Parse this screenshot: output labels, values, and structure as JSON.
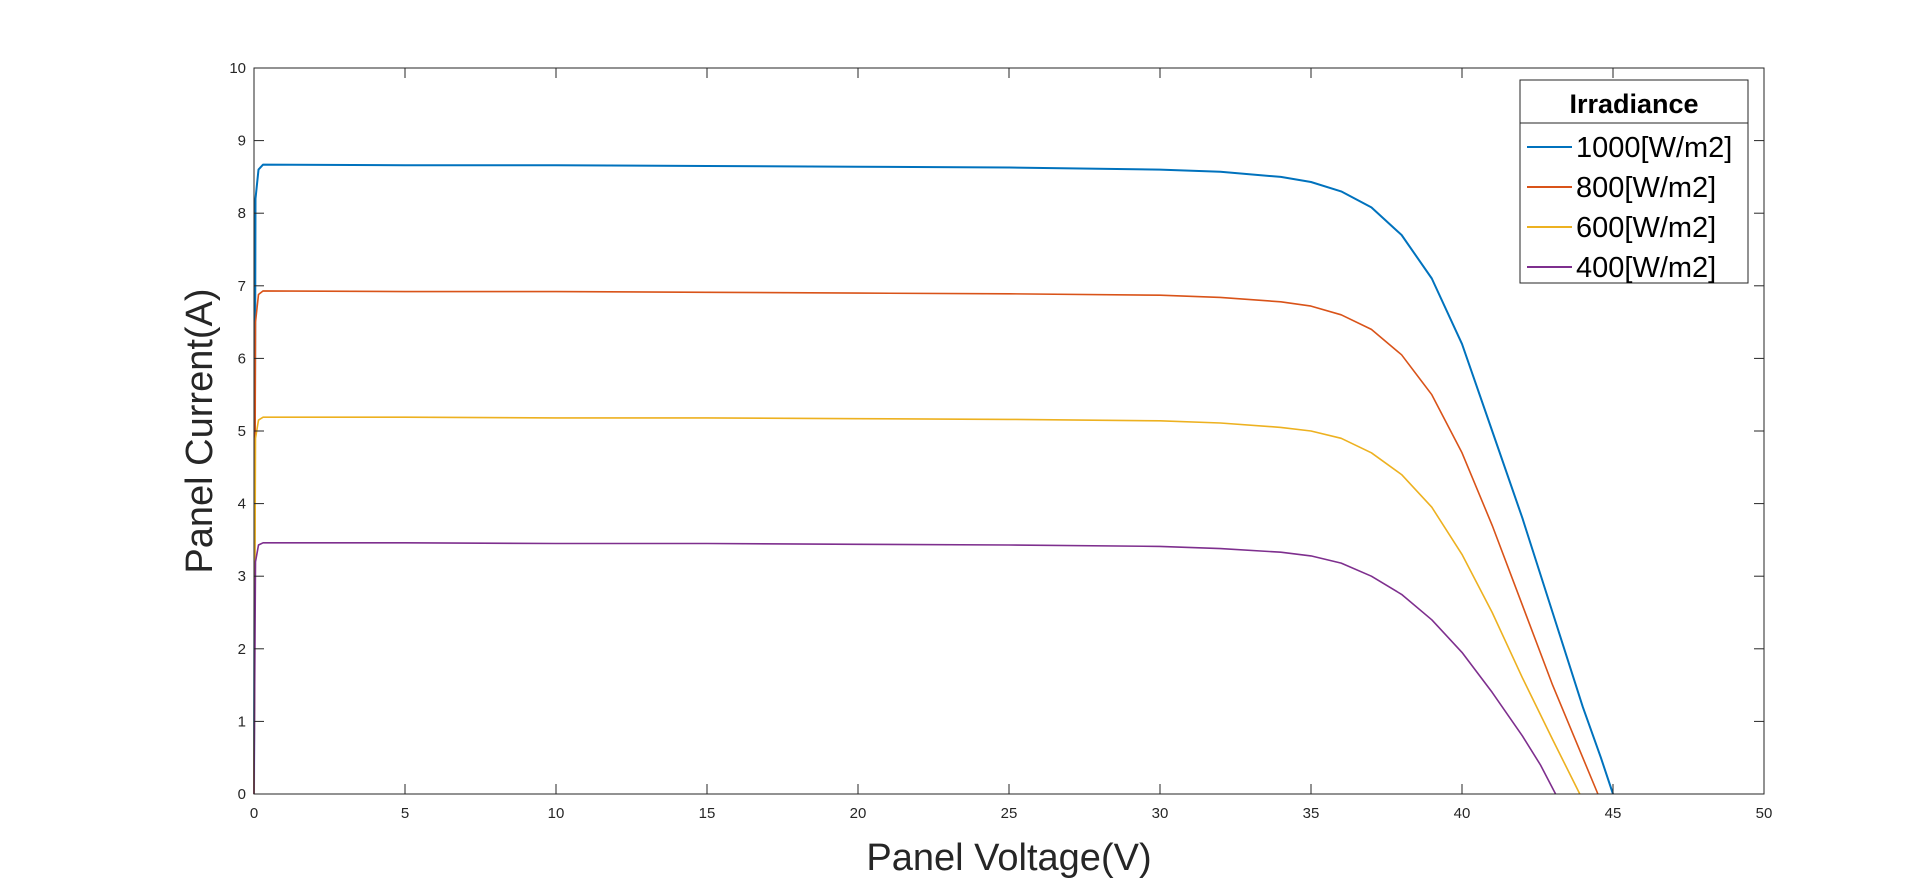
{
  "chart_data": {
    "type": "line",
    "xlabel": "Panel Voltage(V)",
    "ylabel": "Panel Current(A)",
    "xlim": [
      0,
      50
    ],
    "ylim": [
      0,
      10
    ],
    "xticks": [
      0,
      5,
      10,
      15,
      20,
      25,
      30,
      35,
      40,
      45,
      50
    ],
    "yticks": [
      0,
      1,
      2,
      3,
      4,
      5,
      6,
      7,
      8,
      9,
      10
    ],
    "grid": false,
    "legend": {
      "title": "Irradiance",
      "position": "top-right"
    },
    "series": [
      {
        "name": "1000[W/m2]",
        "color": "#0072BD",
        "isc": 8.67,
        "voc": 45.0,
        "points": [
          [
            0,
            0
          ],
          [
            0.05,
            8.2
          ],
          [
            0.15,
            8.6
          ],
          [
            0.3,
            8.67
          ],
          [
            5,
            8.66
          ],
          [
            10,
            8.66
          ],
          [
            15,
            8.65
          ],
          [
            20,
            8.64
          ],
          [
            25,
            8.63
          ],
          [
            30,
            8.6
          ],
          [
            32,
            8.57
          ],
          [
            34,
            8.5
          ],
          [
            35,
            8.43
          ],
          [
            36,
            8.3
          ],
          [
            37,
            8.08
          ],
          [
            38,
            7.7
          ],
          [
            39,
            7.1
          ],
          [
            40,
            6.2
          ],
          [
            41,
            5.0
          ],
          [
            42,
            3.8
          ],
          [
            43,
            2.5
          ],
          [
            44,
            1.2
          ],
          [
            44.6,
            0.5
          ],
          [
            45,
            0
          ]
        ]
      },
      {
        "name": "800[W/m2]",
        "color": "#D95319",
        "isc": 6.93,
        "voc": 44.5,
        "points": [
          [
            0,
            0
          ],
          [
            0.05,
            6.5
          ],
          [
            0.15,
            6.88
          ],
          [
            0.3,
            6.93
          ],
          [
            5,
            6.92
          ],
          [
            10,
            6.92
          ],
          [
            15,
            6.91
          ],
          [
            20,
            6.9
          ],
          [
            25,
            6.89
          ],
          [
            30,
            6.87
          ],
          [
            32,
            6.84
          ],
          [
            34,
            6.78
          ],
          [
            35,
            6.72
          ],
          [
            36,
            6.6
          ],
          [
            37,
            6.4
          ],
          [
            38,
            6.05
          ],
          [
            39,
            5.5
          ],
          [
            40,
            4.7
          ],
          [
            41,
            3.7
          ],
          [
            42,
            2.6
          ],
          [
            43,
            1.5
          ],
          [
            44,
            0.5
          ],
          [
            44.5,
            0
          ]
        ]
      },
      {
        "name": "600[W/m2]",
        "color": "#EDB120",
        "isc": 5.19,
        "voc": 43.9,
        "points": [
          [
            0,
            0
          ],
          [
            0.05,
            4.9
          ],
          [
            0.15,
            5.15
          ],
          [
            0.3,
            5.19
          ],
          [
            5,
            5.19
          ],
          [
            10,
            5.18
          ],
          [
            15,
            5.18
          ],
          [
            20,
            5.17
          ],
          [
            25,
            5.16
          ],
          [
            30,
            5.14
          ],
          [
            32,
            5.11
          ],
          [
            34,
            5.05
          ],
          [
            35,
            5.0
          ],
          [
            36,
            4.9
          ],
          [
            37,
            4.7
          ],
          [
            38,
            4.4
          ],
          [
            39,
            3.95
          ],
          [
            40,
            3.3
          ],
          [
            41,
            2.5
          ],
          [
            42,
            1.6
          ],
          [
            43,
            0.75
          ],
          [
            43.9,
            0
          ]
        ]
      },
      {
        "name": "400[W/m2]",
        "color": "#7E2F8E",
        "isc": 3.46,
        "voc": 43.1,
        "points": [
          [
            0,
            0
          ],
          [
            0.05,
            3.2
          ],
          [
            0.15,
            3.43
          ],
          [
            0.3,
            3.46
          ],
          [
            5,
            3.46
          ],
          [
            10,
            3.45
          ],
          [
            15,
            3.45
          ],
          [
            20,
            3.44
          ],
          [
            25,
            3.43
          ],
          [
            30,
            3.41
          ],
          [
            32,
            3.38
          ],
          [
            34,
            3.33
          ],
          [
            35,
            3.28
          ],
          [
            36,
            3.18
          ],
          [
            37,
            3.0
          ],
          [
            38,
            2.75
          ],
          [
            39,
            2.4
          ],
          [
            40,
            1.95
          ],
          [
            41,
            1.4
          ],
          [
            42,
            0.8
          ],
          [
            42.6,
            0.4
          ],
          [
            43.1,
            0
          ]
        ]
      }
    ]
  }
}
